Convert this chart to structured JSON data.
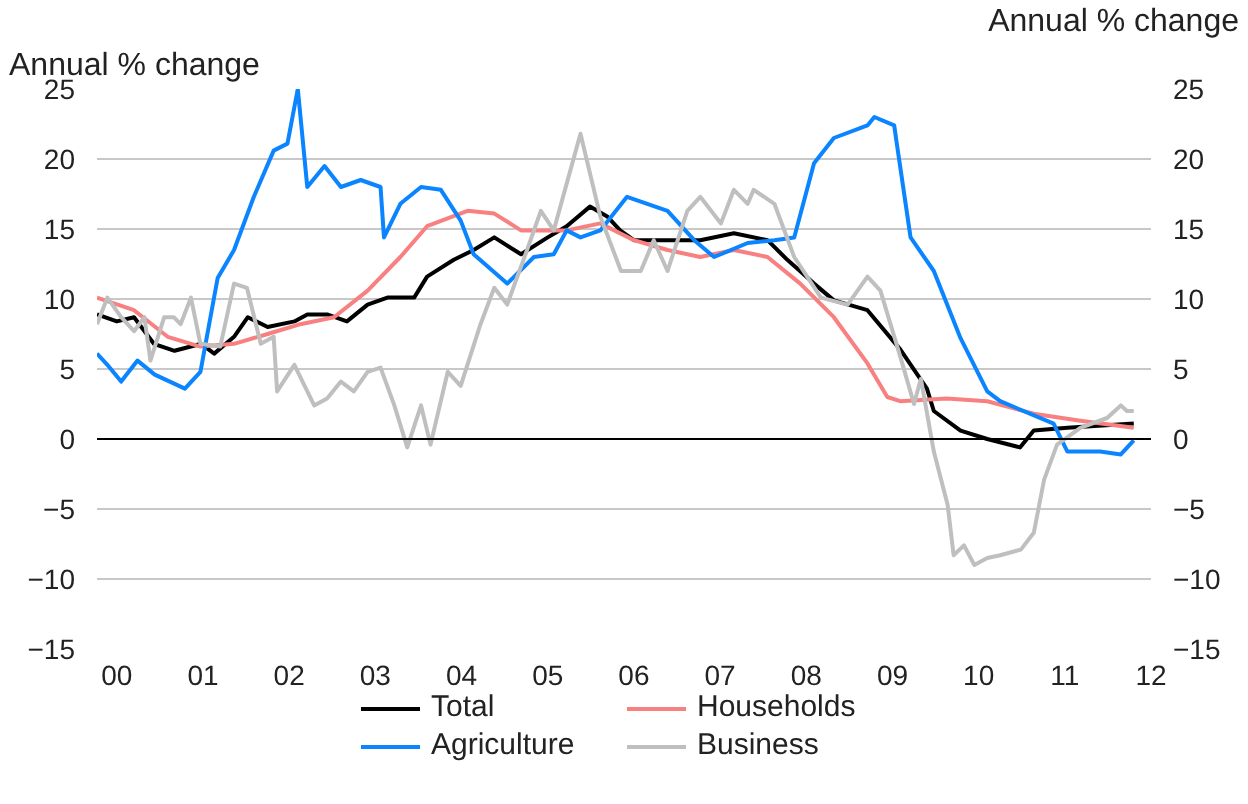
{
  "chart_data": {
    "type": "line",
    "ylabel": "Annual % change",
    "y2label": "Annual % change",
    "xlim": [
      -0.23,
      12.0
    ],
    "xticks": [
      {
        "value": 0,
        "label": "00"
      },
      {
        "value": 1,
        "label": "01"
      },
      {
        "value": 2,
        "label": "02"
      },
      {
        "value": 3,
        "label": "03"
      },
      {
        "value": 4,
        "label": "04"
      },
      {
        "value": 5,
        "label": "05"
      },
      {
        "value": 6,
        "label": "06"
      },
      {
        "value": 7,
        "label": "07"
      },
      {
        "value": 8,
        "label": "08"
      },
      {
        "value": 9,
        "label": "09"
      },
      {
        "value": 10,
        "label": "10"
      },
      {
        "value": 11,
        "label": "11"
      },
      {
        "value": 12,
        "label": "12"
      }
    ],
    "ylim": [
      -15,
      25
    ],
    "yticks": [
      -15,
      -10,
      -5,
      0,
      5,
      10,
      15,
      20,
      25
    ],
    "y2lim": [
      -15,
      25
    ],
    "y2ticks": [
      -15,
      -10,
      -5,
      0,
      5,
      10,
      15,
      20,
      25
    ],
    "grid": "y",
    "legend": "bottom",
    "line_style": "solid",
    "marker": "none",
    "ref_lines": [
      {
        "axis": "y",
        "value": 0,
        "color": "#000000"
      }
    ],
    "series": [
      {
        "name": "Total",
        "color": "#000000",
        "x": [
          -0.23,
          0.0,
          0.2,
          0.43,
          0.67,
          0.98,
          1.13,
          1.36,
          1.52,
          1.75,
          2.06,
          2.21,
          2.44,
          2.67,
          2.91,
          3.14,
          3.45,
          3.6,
          3.91,
          4.14,
          4.38,
          4.69,
          5.0,
          5.22,
          5.49,
          5.69,
          5.84,
          6.0,
          6.39,
          6.77,
          7.16,
          7.55,
          7.78,
          8.09,
          8.32,
          8.71,
          9.09,
          9.4,
          9.48,
          9.79,
          10.1,
          10.48,
          10.64,
          11.03,
          11.8
        ],
        "values": [
          8.9,
          8.4,
          8.7,
          6.8,
          6.3,
          6.8,
          6.1,
          7.3,
          8.7,
          8.0,
          8.4,
          8.9,
          8.9,
          8.4,
          9.6,
          10.1,
          10.1,
          11.6,
          12.8,
          13.5,
          14.4,
          13.2,
          14.4,
          15.2,
          16.6,
          15.9,
          14.9,
          14.2,
          14.2,
          14.2,
          14.7,
          14.2,
          12.8,
          11.1,
          9.9,
          9.2,
          6.4,
          3.6,
          2.0,
          0.6,
          0.0,
          -0.6,
          0.6,
          0.8,
          1.1
        ]
      },
      {
        "name": "Households",
        "color": "#f88080",
        "x": [
          -0.23,
          0.2,
          0.59,
          0.97,
          1.36,
          1.75,
          2.13,
          2.52,
          2.91,
          3.29,
          3.6,
          4.07,
          4.38,
          4.69,
          5.22,
          5.61,
          6.0,
          6.39,
          6.77,
          7.16,
          7.55,
          7.93,
          8.32,
          8.71,
          8.94,
          9.09,
          9.63,
          10.1,
          10.64,
          11.18,
          11.8
        ],
        "values": [
          10.1,
          9.2,
          7.3,
          6.6,
          6.8,
          7.5,
          8.2,
          8.7,
          10.6,
          13.0,
          15.2,
          16.3,
          16.1,
          14.9,
          14.9,
          15.4,
          14.2,
          13.5,
          13.0,
          13.5,
          13.0,
          11.1,
          8.7,
          5.4,
          3.0,
          2.7,
          2.9,
          2.7,
          1.8,
          1.3,
          0.8
        ]
      },
      {
        "name": "Agriculture",
        "color": "#0a84ff",
        "x": [
          -0.23,
          -0.11,
          0.05,
          0.24,
          0.44,
          0.79,
          0.97,
          1.17,
          1.36,
          1.59,
          1.82,
          1.98,
          2.1,
          2.21,
          2.41,
          2.6,
          2.83,
          3.06,
          3.1,
          3.29,
          3.53,
          3.76,
          3.99,
          4.14,
          4.53,
          4.84,
          5.07,
          5.22,
          5.38,
          5.61,
          5.92,
          6.39,
          6.7,
          6.93,
          7.32,
          7.63,
          7.86,
          8.09,
          8.32,
          8.71,
          8.79,
          9.02,
          9.06,
          9.21,
          9.48,
          9.79,
          10.1,
          10.25,
          10.87,
          11.03,
          11.41,
          11.65,
          11.8
        ],
        "values": [
          6.1,
          5.3,
          4.1,
          5.6,
          4.6,
          3.6,
          4.8,
          11.5,
          13.5,
          17.3,
          20.6,
          21.1,
          25,
          18.0,
          19.5,
          18.0,
          18.5,
          18.0,
          14.4,
          16.8,
          18.0,
          17.8,
          15.6,
          13.2,
          11.1,
          13.0,
          13.2,
          14.9,
          14.4,
          14.9,
          17.3,
          16.3,
          14.2,
          13.0,
          14.0,
          14.2,
          14.4,
          19.7,
          21.5,
          22.4,
          23.0,
          22.4,
          20.7,
          14.4,
          12.0,
          7.2,
          3.4,
          2.7,
          1.1,
          -0.9,
          -0.9,
          -1.1,
          -0.1
        ]
      },
      {
        "name": "Business",
        "color": "#bfbfbf",
        "x": [
          -0.23,
          -0.11,
          0.05,
          0.2,
          0.32,
          0.39,
          0.55,
          0.66,
          0.74,
          0.86,
          0.97,
          1.2,
          1.36,
          1.51,
          1.67,
          1.82,
          1.86,
          2.06,
          2.29,
          2.44,
          2.6,
          2.75,
          2.91,
          3.06,
          3.22,
          3.37,
          3.53,
          3.64,
          3.84,
          3.99,
          4.22,
          4.38,
          4.53,
          4.76,
          4.92,
          5.07,
          5.38,
          5.61,
          5.85,
          6.08,
          6.23,
          6.39,
          6.62,
          6.77,
          7.01,
          7.16,
          7.32,
          7.39,
          7.63,
          7.86,
          8.17,
          8.48,
          8.71,
          8.86,
          9.09,
          9.25,
          9.33,
          9.48,
          9.64,
          9.71,
          9.83,
          9.95,
          10.1,
          10.25,
          10.49,
          10.64,
          10.76,
          10.91,
          11.18,
          11.49,
          11.65,
          11.72,
          11.8
        ],
        "values": [
          8.2,
          10.1,
          8.7,
          7.7,
          8.7,
          5.6,
          8.7,
          8.7,
          8.2,
          10.1,
          6.8,
          6.6,
          11.1,
          10.8,
          6.8,
          7.3,
          3.4,
          5.3,
          2.4,
          2.9,
          4.1,
          3.4,
          4.8,
          5.1,
          2.4,
          -0.6,
          2.4,
          -0.4,
          4.8,
          3.8,
          8.2,
          10.8,
          9.6,
          13.5,
          16.3,
          14.9,
          21.8,
          15.9,
          12.0,
          12.0,
          14.2,
          12.0,
          16.3,
          17.3,
          15.4,
          17.8,
          16.8,
          17.8,
          16.8,
          13.0,
          10.1,
          9.6,
          11.6,
          10.6,
          5.9,
          2.5,
          4.3,
          -0.9,
          -4.7,
          -8.3,
          -7.6,
          -9.0,
          -8.5,
          -8.3,
          -7.9,
          -6.7,
          -2.9,
          -0.4,
          0.8,
          1.5,
          2.4,
          2.0,
          2.0
        ]
      }
    ]
  }
}
